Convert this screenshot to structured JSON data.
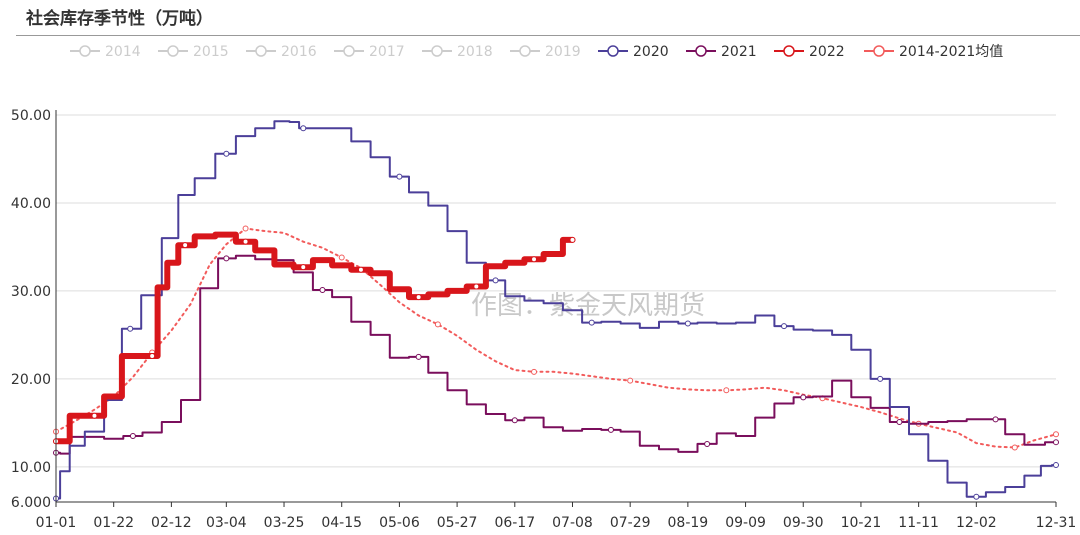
{
  "title": "社会库存季节性（万吨）",
  "watermark": "作图：紫金天风期货",
  "chart_data": {
    "type": "line",
    "title": "社会库存季节性（万吨）",
    "xlabel": "",
    "ylabel": "",
    "x_ticks": [
      "01-01",
      "01-22",
      "02-12",
      "03-04",
      "03-25",
      "04-15",
      "05-06",
      "05-27",
      "06-17",
      "07-08",
      "07-29",
      "08-19",
      "09-09",
      "09-30",
      "10-21",
      "11-11",
      "12-02",
      "12-31"
    ],
    "y_ticks": [
      "6.000",
      "10.00",
      "20.00",
      "30.00",
      "40.00",
      "50.00"
    ],
    "ylim": [
      6,
      50
    ],
    "grid": true,
    "legend_position": "top",
    "series": [
      {
        "name": "2014",
        "hidden": true,
        "color": "#cccccc",
        "values": []
      },
      {
        "name": "2015",
        "hidden": true,
        "color": "#cccccc",
        "values": []
      },
      {
        "name": "2016",
        "hidden": true,
        "color": "#cccccc",
        "values": []
      },
      {
        "name": "2017",
        "hidden": true,
        "color": "#cccccc",
        "values": []
      },
      {
        "name": "2018",
        "hidden": true,
        "color": "#cccccc",
        "values": []
      },
      {
        "name": "2019",
        "hidden": true,
        "color": "#cccccc",
        "values": []
      },
      {
        "name": "2020",
        "color": "#4b3f99",
        "style": "step",
        "width": 2,
        "x": [
          "01-01",
          "01-04",
          "01-08",
          "01-15",
          "01-22",
          "01-28",
          "02-05",
          "02-12",
          "02-17",
          "02-24",
          "03-04",
          "03-11",
          "03-18",
          "03-25",
          "03-29",
          "04-01",
          "04-08",
          "04-15",
          "04-22",
          "04-29",
          "05-06",
          "05-13",
          "05-20",
          "05-27",
          "06-03",
          "06-10",
          "06-17",
          "06-24",
          "07-01",
          "07-08",
          "07-15",
          "07-22",
          "07-29",
          "08-05",
          "08-12",
          "08-19",
          "08-26",
          "09-02",
          "09-09",
          "09-16",
          "09-23",
          "09-30",
          "10-07",
          "10-14",
          "10-21",
          "10-28",
          "11-04",
          "11-11",
          "11-18",
          "11-25",
          "12-02",
          "12-09",
          "12-16",
          "12-23",
          "12-28",
          "12-31"
        ],
        "values": [
          6.4,
          9.5,
          12.4,
          14.0,
          17.6,
          25.7,
          29.5,
          36.0,
          40.9,
          42.8,
          45.6,
          47.6,
          48.5,
          49.3,
          49.2,
          48.5,
          48.5,
          48.5,
          47.0,
          45.2,
          43.0,
          41.2,
          39.7,
          36.8,
          33.2,
          31.2,
          29.4,
          28.9,
          28.6,
          27.8,
          26.4,
          26.5,
          26.3,
          25.8,
          26.5,
          26.3,
          26.4,
          26.3,
          26.4,
          27.2,
          26.0,
          25.6,
          25.5,
          25.0,
          23.3,
          20.0,
          16.8,
          13.7,
          10.7,
          8.2,
          6.6,
          7.1,
          7.7,
          9.0,
          10.1,
          10.2
        ]
      },
      {
        "name": "2021",
        "color": "#7a0e5c",
        "style": "step",
        "width": 2,
        "x": [
          "01-01",
          "01-04",
          "01-08",
          "01-15",
          "01-22",
          "01-29",
          "02-05",
          "02-12",
          "02-19",
          "02-26",
          "03-04",
          "03-11",
          "03-18",
          "03-25",
          "04-01",
          "04-08",
          "04-15",
          "04-22",
          "04-29",
          "05-06",
          "05-13",
          "05-20",
          "05-27",
          "06-03",
          "06-10",
          "06-17",
          "06-24",
          "07-01",
          "07-08",
          "07-15",
          "07-22",
          "07-29",
          "08-05",
          "08-12",
          "08-19",
          "08-26",
          "09-02",
          "09-09",
          "09-16",
          "09-23",
          "09-30",
          "10-07",
          "10-14",
          "10-21",
          "10-28",
          "11-04",
          "11-11",
          "11-18",
          "11-25",
          "12-02",
          "12-09",
          "12-16",
          "12-23",
          "12-31"
        ],
        "values": [
          11.6,
          11.5,
          13.4,
          13.4,
          13.2,
          13.5,
          13.9,
          15.1,
          17.6,
          30.3,
          33.7,
          34.0,
          33.6,
          33.5,
          32.1,
          30.1,
          29.3,
          26.5,
          25.0,
          22.4,
          22.5,
          20.7,
          18.7,
          17.1,
          16.0,
          15.3,
          15.6,
          14.5,
          14.1,
          14.3,
          14.2,
          14.0,
          12.4,
          12.0,
          11.7,
          12.6,
          13.8,
          13.5,
          15.6,
          17.2,
          17.9,
          18.0,
          19.8,
          17.9,
          16.7,
          15.1,
          14.9,
          15.1,
          15.2,
          15.4,
          15.4,
          13.7,
          12.5,
          12.8
        ]
      },
      {
        "name": "2022",
        "color": "#d8161b",
        "style": "step",
        "width": 6,
        "x": [
          "01-01",
          "01-04",
          "01-08",
          "01-15",
          "01-22",
          "01-28",
          "02-05",
          "02-09",
          "02-12",
          "02-17",
          "02-24",
          "03-04",
          "03-11",
          "03-18",
          "03-25",
          "04-01",
          "04-08",
          "04-15",
          "04-22",
          "04-29",
          "05-06",
          "05-13",
          "05-20",
          "05-27",
          "06-03",
          "06-10",
          "06-17",
          "06-24",
          "07-01",
          "07-08"
        ],
        "values": [
          12.9,
          12.9,
          15.8,
          15.8,
          18.0,
          22.6,
          22.6,
          30.4,
          33.2,
          35.2,
          36.2,
          36.4,
          35.6,
          34.6,
          33.0,
          32.7,
          33.5,
          32.9,
          32.4,
          32.0,
          30.2,
          29.3,
          29.6,
          30.0,
          30.5,
          32.8,
          33.2,
          33.6,
          34.2,
          35.8
        ]
      },
      {
        "name": "2014-2021均值",
        "color": "#f25b5b",
        "style": "dotted",
        "width": 2,
        "x": [
          "01-01",
          "01-08",
          "01-15",
          "01-22",
          "01-29",
          "02-05",
          "02-12",
          "02-19",
          "02-26",
          "03-04",
          "03-11",
          "03-18",
          "03-25",
          "04-01",
          "04-08",
          "04-15",
          "04-22",
          "04-29",
          "05-06",
          "05-13",
          "05-20",
          "05-27",
          "06-03",
          "06-10",
          "06-17",
          "06-24",
          "07-01",
          "07-08",
          "07-15",
          "07-22",
          "07-29",
          "08-05",
          "08-12",
          "08-19",
          "08-26",
          "09-02",
          "09-09",
          "09-16",
          "09-23",
          "09-30",
          "10-07",
          "10-14",
          "10-21",
          "10-28",
          "11-04",
          "11-11",
          "11-18",
          "11-25",
          "12-02",
          "12-09",
          "12-16",
          "12-23",
          "12-31"
        ],
        "values": [
          14.0,
          15.2,
          16.5,
          18.0,
          20.2,
          23.0,
          25.5,
          28.5,
          33.0,
          35.3,
          37.1,
          36.8,
          36.6,
          35.6,
          34.9,
          33.8,
          32.6,
          30.7,
          28.7,
          27.2,
          26.2,
          24.9,
          23.3,
          22.0,
          21.0,
          20.8,
          20.8,
          20.6,
          20.3,
          20.0,
          19.8,
          19.4,
          19.0,
          18.8,
          18.7,
          18.7,
          18.8,
          19.0,
          18.7,
          18.2,
          17.8,
          17.3,
          16.8,
          16.2,
          15.5,
          14.9,
          14.4,
          13.9,
          12.7,
          12.3,
          12.2,
          13.0,
          13.7
        ]
      }
    ]
  }
}
